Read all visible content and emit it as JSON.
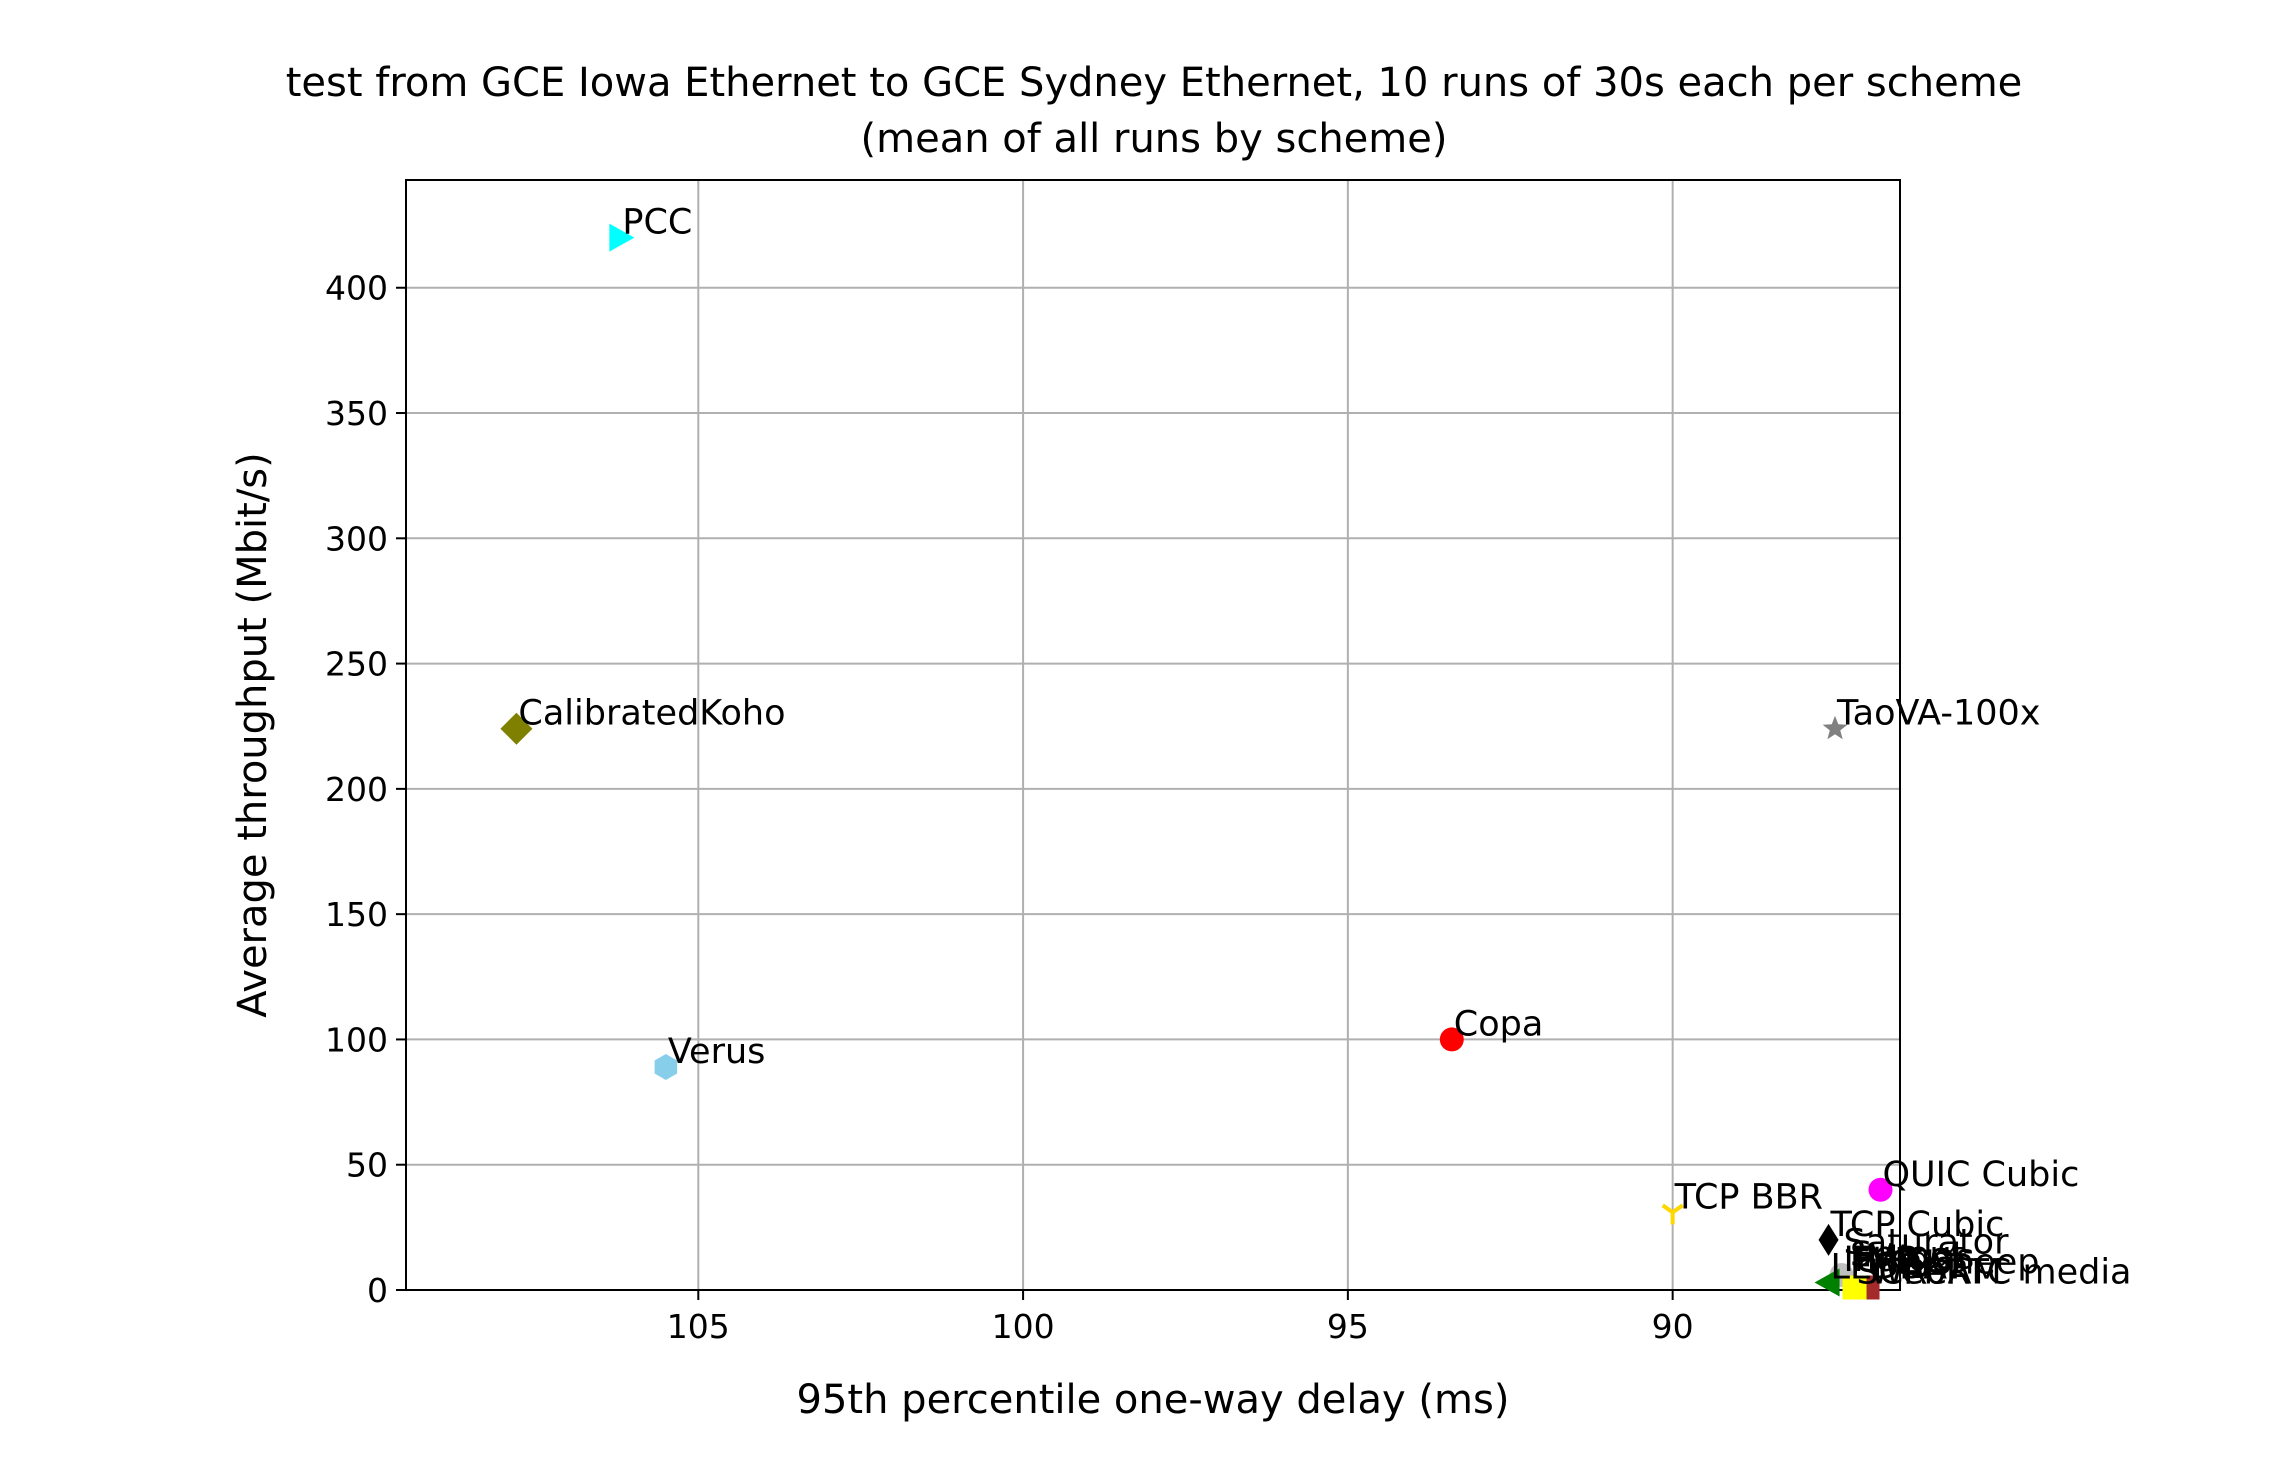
{
  "chart_data": {
    "type": "scatter",
    "title": "test from GCE Iowa Ethernet to GCE Sydney Ethernet, 10 runs of 30s each per scheme",
    "subtitle": "(mean of all runs by scheme)",
    "xlabel": "95th percentile one-way delay (ms)",
    "ylabel": "Average throughput (Mbit/s)",
    "xlim": [
      109.5,
      86.5
    ],
    "ylim": [
      0,
      443
    ],
    "x_inverted": true,
    "grid": true,
    "xticks": [
      105,
      100,
      95,
      90
    ],
    "xtick_labels": [
      "105",
      "100",
      "95",
      "90"
    ],
    "yticks": [
      0,
      50,
      100,
      150,
      200,
      250,
      300,
      350,
      400
    ],
    "ytick_labels": [
      "0",
      "50",
      "100",
      "150",
      "200",
      "250",
      "300",
      "350",
      "400"
    ],
    "points": [
      {
        "name": "PCC",
        "x": 106.2,
        "y": 420,
        "color": "#00ffff",
        "marker": "triangle-right"
      },
      {
        "name": "CalibratedKoho",
        "x": 107.8,
        "y": 224,
        "color": "#808000",
        "marker": "diamond"
      },
      {
        "name": "Verus",
        "x": 105.5,
        "y": 89,
        "color": "#87ceeb",
        "marker": "hexagon"
      },
      {
        "name": "Copa",
        "x": 93.4,
        "y": 100,
        "color": "#ff0000",
        "marker": "circle"
      },
      {
        "name": "TaoVA-100x",
        "x": 87.5,
        "y": 224,
        "color": "#808080",
        "marker": "star"
      },
      {
        "name": "QUIC Cubic",
        "x": 86.8,
        "y": 40,
        "color": "#ff00ff",
        "marker": "circle"
      },
      {
        "name": "TCP BBR",
        "x": 90.0,
        "y": 31,
        "color": "#ffd700",
        "marker": "tri-down"
      },
      {
        "name": "TCP Cubic",
        "x": 87.6,
        "y": 20,
        "color": "#000000",
        "marker": "thin-diamond"
      },
      {
        "name": "Indigo",
        "x": 87.4,
        "y": 6,
        "color": "#c0c0c0",
        "marker": "circle"
      },
      {
        "name": "LEDBAT",
        "x": 87.6,
        "y": 3,
        "color": "#008000",
        "marker": "triangle-left"
      },
      {
        "name": "WebRTC media",
        "x": 87.0,
        "y": 1,
        "color": "#a52a2a",
        "marker": "square"
      },
      {
        "name": "SCReAM",
        "x": 87.2,
        "y": 1,
        "color": "#ffff00",
        "marker": "square"
      }
    ],
    "overlapping_labels": [
      {
        "text": "Saturator",
        "x": 87.4,
        "y": 13
      },
      {
        "text": "Sprout",
        "x": 87.3,
        "y": 8
      },
      {
        "text": "FillP",
        "x": 87.3,
        "y": 6
      },
      {
        "text": "Vegas",
        "x": 87.0,
        "y": 7
      },
      {
        "text": "FillP-Sheep",
        "x": 87.3,
        "y": 5
      }
    ]
  }
}
